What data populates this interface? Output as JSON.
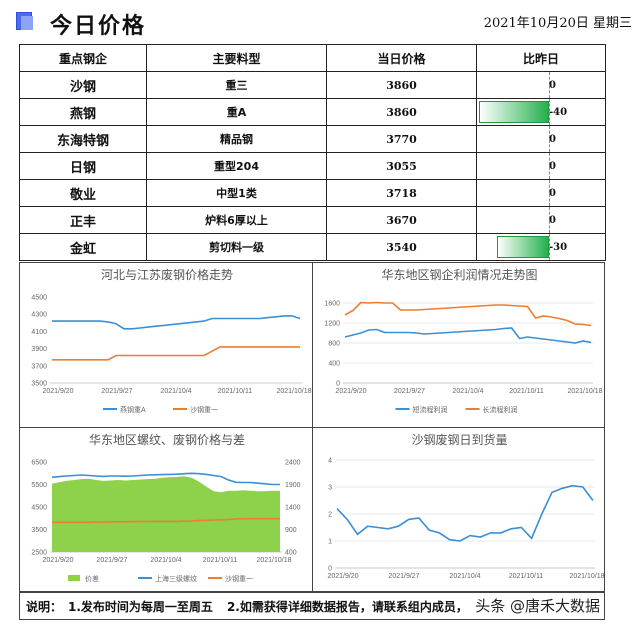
{
  "header": {
    "title": "今日价格",
    "date": "2021年10月20日  星期三"
  },
  "table": {
    "columns": [
      "重点钢企",
      "主要料型",
      "当日价格",
      "比昨日"
    ],
    "rows": [
      {
        "mill": "沙钢",
        "steel": "重三",
        "price": "3860",
        "change": 0
      },
      {
        "mill": "燕钢",
        "steel": "重A",
        "price": "3860",
        "change": -40
      },
      {
        "mill": "东海特钢",
        "steel": "精品钢",
        "price": "3770",
        "change": 0
      },
      {
        "mill": "日钢",
        "steel": "重型204",
        "price": "3055",
        "change": 0
      },
      {
        "mill": "敬业",
        "steel": "中型1类",
        "price": "3718",
        "change": 0
      },
      {
        "mill": "正丰",
        "steel": "炉料6厚以上",
        "price": "3670",
        "change": 0
      },
      {
        "mill": "金虹",
        "steel": "剪切料一级",
        "price": "3540",
        "change": -30
      }
    ],
    "bar_color": "#23b14d"
  },
  "chart_data": [
    {
      "type": "line",
      "title": "河北与江苏废钢价格走势",
      "x_labels": [
        "2021/9/20",
        "2021/9/27",
        "2021/10/4",
        "2021/10/11",
        "2021/10/18"
      ],
      "ylim": [
        3500,
        4500
      ],
      "yticks": [
        3500,
        3700,
        3900,
        4100,
        4300,
        4500
      ],
      "series": [
        {
          "name": "燕钢重A",
          "color": "#3b8fd4",
          "values": [
            4220,
            4220,
            4220,
            4220,
            4220,
            4220,
            4220,
            4210,
            4190,
            4130,
            4130,
            4140,
            4150,
            4160,
            4170,
            4180,
            4190,
            4200,
            4210,
            4220,
            4250,
            4250,
            4250,
            4250,
            4250,
            4250,
            4250,
            4260,
            4270,
            4280,
            4280,
            4250
          ]
        },
        {
          "name": "沙钢重一",
          "color": "#ed7d31",
          "values": [
            3770,
            3770,
            3770,
            3770,
            3770,
            3770,
            3770,
            3770,
            3820,
            3820,
            3820,
            3820,
            3820,
            3820,
            3820,
            3820,
            3820,
            3820,
            3820,
            3820,
            3870,
            3920,
            3920,
            3920,
            3920,
            3920,
            3920,
            3920,
            3920,
            3920,
            3920,
            3920
          ]
        }
      ],
      "legend": "bottom",
      "grid": false
    },
    {
      "type": "line",
      "title": "华东地区钢企利润情况走势图",
      "x_labels": [
        "2021/9/20",
        "2021/9/27",
        "2021/10/4",
        "2021/10/11",
        "2021/10/18"
      ],
      "ylim": [
        0,
        1600
      ],
      "yticks": [
        0,
        400,
        800,
        1200,
        1600
      ],
      "series": [
        {
          "name": "短流程利润",
          "color": "#3b8fd4",
          "values": [
            920,
            960,
            1000,
            1060,
            1070,
            1010,
            1010,
            1010,
            1010,
            1000,
            980,
            990,
            1000,
            1010,
            1020,
            1030,
            1040,
            1050,
            1060,
            1070,
            1090,
            1100,
            890,
            920,
            900,
            880,
            860,
            840,
            820,
            800,
            840,
            810
          ]
        },
        {
          "name": "长流程利润",
          "color": "#ed7d31",
          "values": [
            1360,
            1450,
            1610,
            1600,
            1610,
            1600,
            1600,
            1460,
            1460,
            1460,
            1470,
            1480,
            1490,
            1500,
            1510,
            1520,
            1530,
            1540,
            1550,
            1560,
            1560,
            1550,
            1540,
            1530,
            1300,
            1340,
            1320,
            1290,
            1250,
            1180,
            1170,
            1150
          ]
        }
      ],
      "legend": "bottom",
      "grid": true
    },
    {
      "type": "area",
      "title": "华东地区螺纹、废钢价格与差",
      "x_labels": [
        "2021/9/20",
        "2021/9/27",
        "2021/10/4",
        "2021/10/11",
        "2021/10/18"
      ],
      "ylim": [
        2500,
        6500
      ],
      "yticks": [
        2500,
        3500,
        4500,
        5500,
        6500
      ],
      "ylim_right": [
        400,
        2400
      ],
      "yticks_right": [
        400,
        900,
        1400,
        1900,
        2400
      ],
      "series": [
        {
          "name": "价差",
          "color": "#8ed14b",
          "axis": "right",
          "values": [
            1920,
            1950,
            1980,
            2000,
            2020,
            2030,
            2000,
            1980,
            1990,
            2000,
            1990,
            2000,
            2010,
            2020,
            2030,
            2050,
            2060,
            2070,
            2080,
            2050,
            1960,
            1850,
            1750,
            1730,
            1760,
            1760,
            1770,
            1760,
            1750,
            1750,
            1760,
            1760
          ]
        },
        {
          "name": "上海三级螺纹",
          "color": "#3b8fd4",
          "axis": "left",
          "values": [
            5820,
            5850,
            5880,
            5900,
            5920,
            5900,
            5880,
            5860,
            5880,
            5880,
            5870,
            5880,
            5900,
            5920,
            5930,
            5940,
            5950,
            5960,
            5980,
            6000,
            5980,
            5950,
            5900,
            5850,
            5700,
            5600,
            5590,
            5590,
            5560,
            5530,
            5500,
            5500
          ]
        },
        {
          "name": "沙钢重一",
          "color": "#ed7d31",
          "axis": "left",
          "values": [
            3820,
            3820,
            3820,
            3820,
            3820,
            3820,
            3830,
            3830,
            3840,
            3840,
            3840,
            3850,
            3850,
            3850,
            3860,
            3860,
            3860,
            3860,
            3870,
            3880,
            3900,
            3910,
            3920,
            3930,
            3950,
            3970,
            3980,
            3980,
            3980,
            3980,
            3980,
            3990
          ]
        }
      ],
      "legend": "bottom",
      "grid": false
    },
    {
      "type": "line",
      "title": "沙钢废钢日到货量",
      "x_labels": [
        "2021/9/20",
        "2021/9/27",
        "2021/10/4",
        "2021/10/11",
        "2021/10/18"
      ],
      "ylim": [
        0,
        4
      ],
      "yticks": [
        0,
        1,
        2,
        3,
        4
      ],
      "series": [
        {
          "name": "",
          "color": "#3b8fd4",
          "values": [
            2.2,
            1.8,
            1.25,
            1.55,
            1.5,
            1.45,
            1.55,
            1.8,
            1.85,
            1.4,
            1.3,
            1.05,
            1.0,
            1.2,
            1.15,
            1.3,
            1.3,
            1.45,
            1.5,
            1.1,
            2.0,
            2.8,
            2.95,
            3.05,
            3.0,
            2.5
          ]
        }
      ],
      "legend": "none",
      "grid": true
    }
  ],
  "footer": {
    "label": "说明：",
    "note1": "1.发布时间为每周一至周五",
    "note2": "2.如需获得详细数据报告，请联系组内成员，",
    "credit": "头条 @唐禾大数据"
  }
}
